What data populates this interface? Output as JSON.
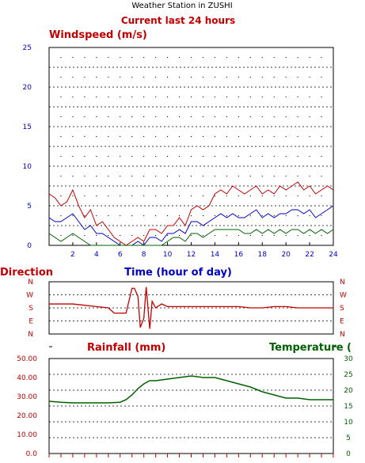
{
  "header": {
    "station": "Weather Station in ZUSHI",
    "subtitle": "Current last 24 hours"
  },
  "colors": {
    "red": "#c00000",
    "blue": "#0000c0",
    "green": "#006000",
    "grid": "#000000"
  },
  "chart_data": [
    {
      "type": "line",
      "title": "Windspeed (m/s)",
      "xlabel": "Time (hour of day)",
      "x_ticks": [
        "2",
        "4",
        "6",
        "8",
        "10",
        "12",
        "14",
        "16",
        "18",
        "20",
        "22",
        "24"
      ],
      "y_ticks": [
        "0",
        "5",
        "10",
        "15",
        "20",
        "25"
      ],
      "xlim": [
        0,
        24
      ],
      "ylim": [
        0,
        25
      ],
      "grid": true,
      "series": [
        {
          "color": "#c00000",
          "x": [
            0,
            0.5,
            1,
            1.5,
            2,
            2.5,
            3,
            3.5,
            4,
            4.5,
            5,
            5.5,
            6,
            6.5,
            7,
            7.5,
            8,
            8.5,
            9,
            9.5,
            10,
            10.5,
            11,
            11.5,
            12,
            12.5,
            13,
            13.5,
            14,
            14.5,
            15,
            15.5,
            16,
            16.5,
            17,
            17.5,
            18,
            18.5,
            19,
            19.5,
            20,
            20.5,
            21,
            21.5,
            22,
            22.5,
            23,
            23.5,
            24
          ],
          "y": [
            6.5,
            6,
            5,
            5.5,
            7,
            5,
            3.5,
            4.5,
            2.5,
            3,
            2,
            1,
            0.5,
            0,
            0.5,
            1,
            0.5,
            2,
            2,
            1.5,
            2.5,
            2.5,
            3.5,
            2.5,
            4.5,
            5,
            4.5,
            5,
            6.5,
            7,
            6.5,
            7.5,
            7,
            6.5,
            7,
            7.5,
            6.5,
            7,
            6.5,
            7.5,
            7,
            7.5,
            8,
            7,
            7.5,
            6.5,
            7,
            7.5,
            7
          ]
        },
        {
          "color": "#0000c0",
          "x": [
            0,
            0.5,
            1,
            1.5,
            2,
            2.5,
            3,
            3.5,
            4,
            4.5,
            5,
            5.5,
            6,
            6.5,
            7,
            7.5,
            8,
            8.5,
            9,
            9.5,
            10,
            10.5,
            11,
            11.5,
            12,
            12.5,
            13,
            13.5,
            14,
            14.5,
            15,
            15.5,
            16,
            16.5,
            17,
            17.5,
            18,
            18.5,
            19,
            19.5,
            20,
            20.5,
            21,
            21.5,
            22,
            22.5,
            23,
            23.5,
            24
          ],
          "y": [
            3.5,
            3,
            3,
            3.5,
            4,
            3,
            2,
            2.5,
            1.5,
            1.5,
            1,
            0.5,
            0,
            0,
            0,
            0.5,
            0,
            1,
            1,
            0.5,
            1.5,
            1.5,
            2,
            1.5,
            3,
            3,
            2.5,
            3,
            3.5,
            4,
            3.5,
            4,
            3.5,
            3.5,
            4,
            4.5,
            3.5,
            4,
            3.5,
            4,
            4,
            4.5,
            4.5,
            4,
            4.5,
            3.5,
            4,
            4.5,
            5
          ]
        },
        {
          "color": "#006000",
          "x": [
            0,
            0.5,
            1,
            1.5,
            2,
            2.5,
            3,
            3.5,
            4,
            4.5,
            5,
            5.5,
            6,
            6.5,
            7,
            7.5,
            8,
            8.5,
            9,
            9.5,
            10,
            10.5,
            11,
            11.5,
            12,
            12.5,
            13,
            13.5,
            14,
            14.5,
            15,
            15.5,
            16,
            16.5,
            17,
            17.5,
            18,
            18.5,
            19,
            19.5,
            20,
            20.5,
            21,
            21.5,
            22,
            22.5,
            23,
            23.5,
            24
          ],
          "y": [
            1.5,
            1,
            0.5,
            1,
            1.5,
            1,
            0.5,
            0,
            0,
            0,
            0,
            0,
            0,
            0,
            0,
            0,
            0,
            0,
            0,
            0,
            0.5,
            1,
            1,
            0.5,
            1.5,
            1.5,
            1,
            1.5,
            2,
            2,
            2,
            2,
            2,
            1.5,
            1.5,
            2,
            1.5,
            2,
            1.5,
            2,
            1.5,
            2,
            2,
            1.5,
            2,
            1.5,
            2,
            1.5,
            2
          ]
        }
      ]
    },
    {
      "type": "line",
      "title": "Direction",
      "y_ticks": [
        "N",
        "W",
        "S",
        "E",
        "N"
      ],
      "xlim": [
        0,
        24
      ],
      "ylim": [
        0,
        4
      ],
      "grid": true,
      "series": [
        {
          "color": "#c00000",
          "x": [
            0,
            1,
            2,
            3,
            4,
            5,
            5.5,
            6,
            6.5,
            7,
            7.2,
            7.5,
            7.7,
            8,
            8.2,
            8.5,
            8.7,
            9,
            9.5,
            10,
            11,
            12,
            13,
            14,
            15,
            16,
            17,
            18,
            19,
            20,
            21,
            22,
            23,
            24
          ],
          "y": [
            2.3,
            2.3,
            2.3,
            2.2,
            2.1,
            2.0,
            1.6,
            1.6,
            1.6,
            3.5,
            3.5,
            2.9,
            0.5,
            1.2,
            3.6,
            0.4,
            2.5,
            2.0,
            2.3,
            2.1,
            2.1,
            2.1,
            2.1,
            2.1,
            2.1,
            2.1,
            2.0,
            2.0,
            2.1,
            2.1,
            2.0,
            2.0,
            2.0,
            2.0
          ]
        }
      ]
    },
    {
      "type": "line",
      "title": "Rainfall (mm)",
      "y_ticks": [
        "0.0",
        "10.00",
        "20.00",
        "30.00",
        "40.00",
        "50.00"
      ],
      "ylim": [
        0,
        50
      ],
      "series": []
    },
    {
      "type": "line",
      "title": "Temperature (",
      "y_ticks": [
        "0",
        "5",
        "10",
        "15",
        "20",
        "25",
        "30"
      ],
      "xlim": [
        0,
        24
      ],
      "ylim": [
        0,
        30
      ],
      "grid": true,
      "series": [
        {
          "color": "#006000",
          "x": [
            0,
            1,
            2,
            3,
            4,
            5,
            6,
            6.5,
            7,
            7.5,
            8,
            8.5,
            9,
            10,
            11,
            12,
            13,
            14,
            15,
            16,
            17,
            18,
            19,
            20,
            21,
            22,
            23,
            24
          ],
          "y": [
            16.5,
            16.2,
            16.0,
            16.0,
            16.0,
            16.0,
            16.2,
            17.0,
            18.5,
            20.5,
            22.0,
            23.0,
            23.0,
            23.5,
            24.0,
            24.5,
            24.0,
            24.0,
            23.0,
            22.0,
            21.0,
            19.5,
            18.5,
            17.5,
            17.5,
            17.0,
            17.0,
            17.0
          ]
        }
      ]
    }
  ]
}
